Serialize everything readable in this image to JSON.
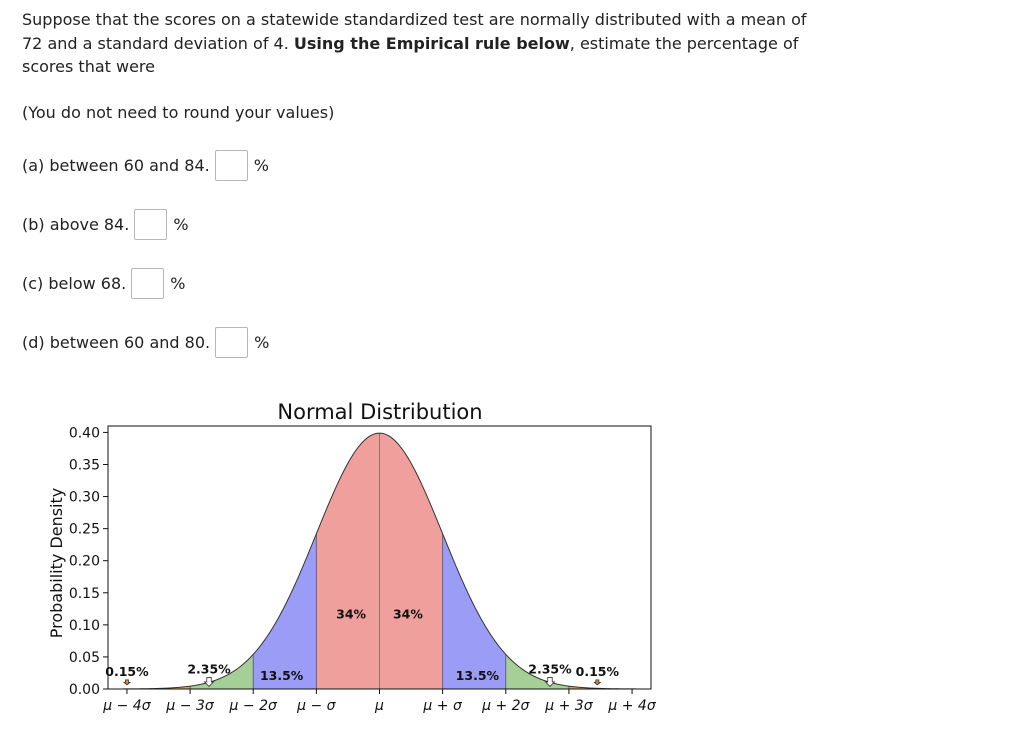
{
  "question": {
    "text_part1": "Suppose that the scores on a statewide standardized test are normally distributed with a mean of 72 and a standard deviation of 4. ",
    "bold_text": "Using the Empirical rule below",
    "text_part2": ", estimate the percentage of scores that were",
    "note": "(You do not need to round your values)"
  },
  "parts": [
    {
      "label": "(a) between 60 and 84.",
      "value": "",
      "unit": "%"
    },
    {
      "label": "(b) above 84.",
      "value": "",
      "unit": "%"
    },
    {
      "label": "(c) below 68.",
      "value": "",
      "unit": "%"
    },
    {
      "label": "(d) between 60 and 80.",
      "value": "",
      "unit": "%"
    }
  ],
  "chart_data": {
    "type": "area",
    "title": "Normal Distribution",
    "ylabel": "Probability Density",
    "xlabel": "",
    "ylim": [
      0,
      0.41
    ],
    "xlim": [
      -4.3,
      4.3
    ],
    "yticks": [
      "0.00",
      "0.05",
      "0.10",
      "0.15",
      "0.20",
      "0.25",
      "0.30",
      "0.35",
      "0.40"
    ],
    "xticks": [
      {
        "x": -4,
        "label": "μ − 4σ"
      },
      {
        "x": -3,
        "label": "μ − 3σ"
      },
      {
        "x": -2,
        "label": "μ − 2σ"
      },
      {
        "x": -1,
        "label": "μ − σ"
      },
      {
        "x": 0,
        "label": "μ"
      },
      {
        "x": 1,
        "label": "μ + σ"
      },
      {
        "x": 2,
        "label": "μ + 2σ"
      },
      {
        "x": 3,
        "label": "μ + 3σ"
      },
      {
        "x": 4,
        "label": "μ + 4σ"
      }
    ],
    "regions": [
      {
        "from": -4,
        "to": -3,
        "percent": "0.15%",
        "color": "#e8a860"
      },
      {
        "from": -3,
        "to": -2,
        "percent": "2.35%",
        "color": "#a6cf98"
      },
      {
        "from": -2,
        "to": -1,
        "percent": "13.5%",
        "color": "#9b9cf5"
      },
      {
        "from": -1,
        "to": 0,
        "percent": "34%",
        "color": "#f0a09c"
      },
      {
        "from": 0,
        "to": 1,
        "percent": "34%",
        "color": "#f0a09c"
      },
      {
        "from": 1,
        "to": 2,
        "percent": "13.5%",
        "color": "#9b9cf5"
      },
      {
        "from": 2,
        "to": 3,
        "percent": "2.35%",
        "color": "#a6cf98"
      },
      {
        "from": 3,
        "to": 4,
        "percent": "0.15%",
        "color": "#e8a860"
      }
    ],
    "grid": false
  }
}
